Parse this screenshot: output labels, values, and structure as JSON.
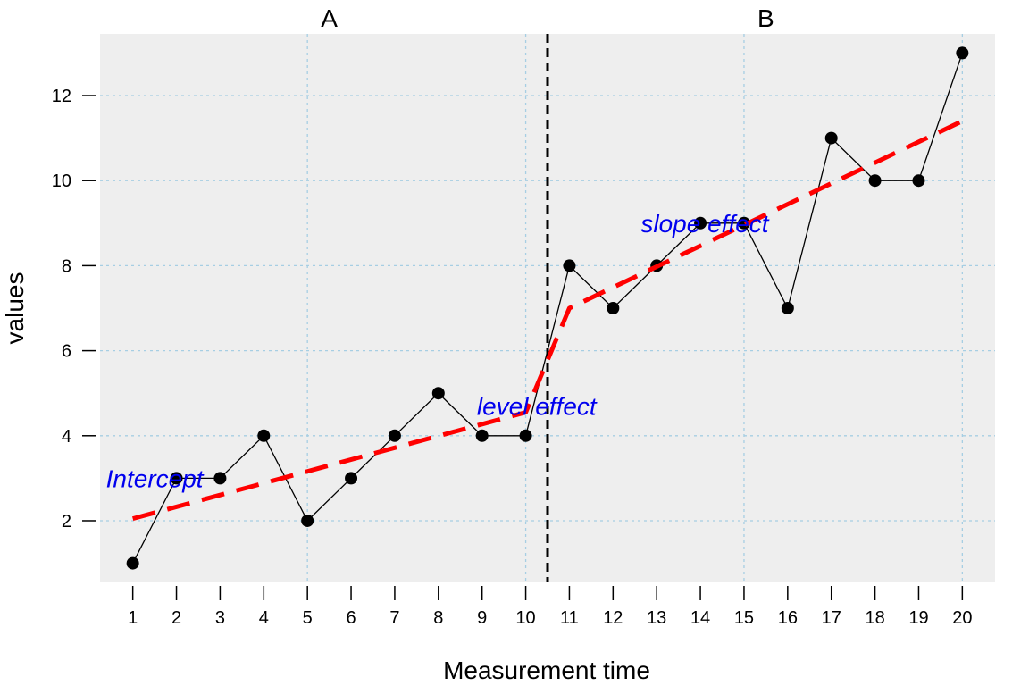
{
  "chart_data": {
    "type": "line",
    "title": "",
    "xlabel": "Measurement time",
    "ylabel": "values",
    "x": [
      1,
      2,
      3,
      4,
      5,
      6,
      7,
      8,
      9,
      10,
      11,
      12,
      13,
      14,
      15,
      16,
      17,
      18,
      19,
      20
    ],
    "x_ticks": [
      "1",
      "2",
      "3",
      "4",
      "5",
      "6",
      "7",
      "8",
      "9",
      "10",
      "11",
      "12",
      "13",
      "14",
      "15",
      "16",
      "17",
      "18",
      "19",
      "20"
    ],
    "y_ticks": [
      "2",
      "4",
      "6",
      "8",
      "10",
      "12"
    ],
    "xlim": [
      0.25,
      20.75
    ],
    "ylim": [
      0.55,
      13.45
    ],
    "grid": true,
    "series": [
      {
        "values": [
          1,
          3,
          3,
          4,
          2,
          3,
          4,
          5,
          4,
          4,
          8,
          7,
          8,
          9,
          9,
          7,
          11,
          10,
          10,
          13
        ],
        "color": "#000000",
        "marker": "circle"
      }
    ],
    "trend_line": {
      "color": "#ff0000",
      "style": "dashed",
      "points": [
        [
          1,
          2.05
        ],
        [
          10,
          4.55
        ],
        [
          11,
          7.0
        ],
        [
          20,
          11.4
        ]
      ]
    },
    "phase_change_x": 10.5,
    "phases": [
      {
        "label": "A",
        "center_x": 5.5
      },
      {
        "label": "B",
        "center_x": 15.5
      }
    ],
    "annotations": [
      {
        "text": "Intercept",
        "x": 1.5,
        "y": 3.0,
        "color": "#0000ee"
      },
      {
        "text": "level effect",
        "x": 10.25,
        "y": 4.7,
        "color": "#0000ee"
      },
      {
        "text": "slope effect",
        "x": 14.1,
        "y": 9.0,
        "color": "#0000ee"
      }
    ],
    "colors": {
      "panel_background": "#eeeeee",
      "grid": "#a6cee3",
      "phase_line": "#000000",
      "annotation": "#0000ee"
    }
  }
}
